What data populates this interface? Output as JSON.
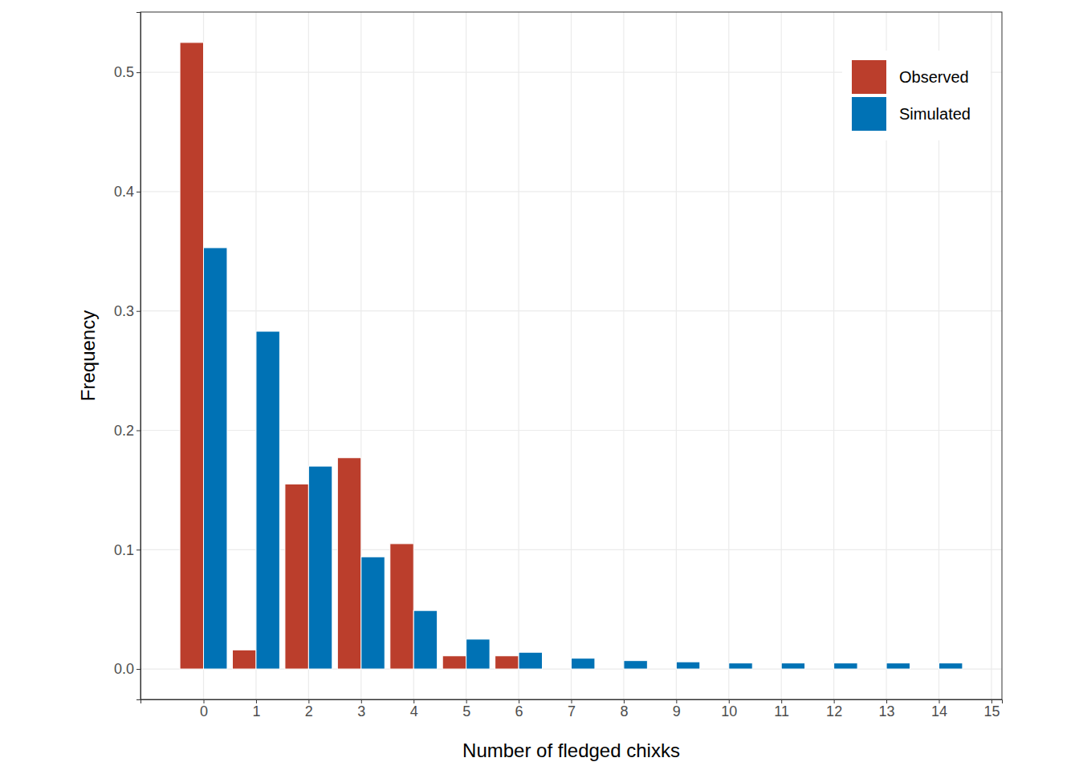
{
  "chart_data": {
    "type": "bar",
    "x_label": "Number of fledged chixks",
    "y_label": "Frequency",
    "x": [
      0,
      1,
      2,
      3,
      4,
      5,
      6,
      7,
      8,
      9,
      10,
      11,
      12,
      13,
      14
    ],
    "series": [
      {
        "name": "Observed",
        "color": "#bb3e2c",
        "values": [
          0.525,
          0.016,
          0.155,
          0.177,
          0.105,
          0.011,
          0.011,
          0,
          0,
          0,
          0,
          0,
          0,
          0,
          0
        ]
      },
      {
        "name": "Simulated",
        "color": "#0072b5",
        "values": [
          0.353,
          0.283,
          0.17,
          0.094,
          0.049,
          0.025,
          0.014,
          0.009,
          0.007,
          0.006,
          0.005,
          0.005,
          0.005,
          0.005,
          0.005
        ]
      }
    ],
    "xlim": [
      -1.2,
      15.2
    ],
    "xticks": [
      0,
      1,
      2,
      3,
      4,
      5,
      6,
      7,
      8,
      9,
      10,
      11,
      12,
      13,
      14,
      15
    ],
    "ylim": [
      -0.0255,
      0.5505
    ],
    "yticks": [
      {
        "value": 0,
        "label": "0.0"
      },
      0.1,
      0.2,
      0.3,
      0.4,
      0.5
    ],
    "grid": true,
    "legend": "top-right"
  }
}
